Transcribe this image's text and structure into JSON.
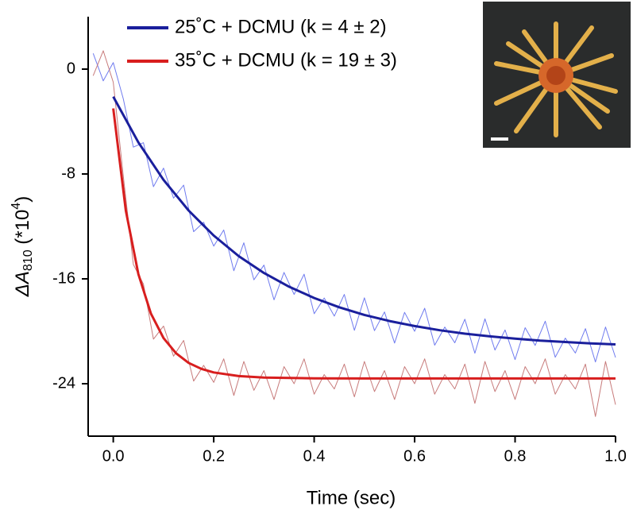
{
  "chart_data": {
    "type": "line",
    "x_label": "Time (sec)",
    "y_label_parts": [
      "ΔA",
      "810",
      " (*10",
      "4",
      ")"
    ],
    "xlim": [
      -0.05,
      1.0
    ],
    "ylim": [
      -28,
      4
    ],
    "xticks": [
      {
        "value": 0,
        "label": "0.0"
      },
      0.2,
      0.4,
      0.6,
      0.8,
      {
        "value": 1,
        "label": "1.0"
      }
    ],
    "yticks": [
      0,
      -8,
      -16,
      -24
    ],
    "grid": false,
    "legend": "top",
    "series": [
      {
        "color": "#6f7bef",
        "width": 1,
        "x": [
          -0.04,
          -0.02,
          0,
          0.02,
          0.04,
          0.06,
          0.08,
          0.1,
          0.12,
          0.14,
          0.16,
          0.18,
          0.2,
          0.22,
          0.24,
          0.26,
          0.28,
          0.3,
          0.32,
          0.34,
          0.36,
          0.38,
          0.4,
          0.42,
          0.44,
          0.46,
          0.48,
          0.5,
          0.52,
          0.54,
          0.56,
          0.58,
          0.6,
          0.62,
          0.64,
          0.66,
          0.68,
          0.7,
          0.72,
          0.74,
          0.76,
          0.78,
          0.8,
          0.82,
          0.84,
          0.86,
          0.88,
          0.9,
          0.92,
          0.94,
          0.96,
          0.98,
          1.0
        ],
        "values": [
          1.2,
          -0.9,
          0.5,
          -2.28,
          -5.95,
          -5.61,
          -8.97,
          -7.55,
          -9.84,
          -8.85,
          -12.4,
          -11.68,
          -13.5,
          -12.27,
          -15.38,
          -13.25,
          -16.07,
          -14.95,
          -17.6,
          -15.51,
          -17.19,
          -15.64,
          -18.66,
          -17.46,
          -18.84,
          -17.19,
          -19.93,
          -17.45,
          -19.95,
          -18.53,
          -20.9,
          -18.56,
          -20.0,
          -18.24,
          -21.06,
          -19.68,
          -20.88,
          -19.08,
          -21.67,
          -19.05,
          -21.43,
          -19.9,
          -22.16,
          -19.73,
          -21.08,
          -19.23,
          -21.98,
          -20.52,
          -21.66,
          -19.8,
          -22.34,
          -19.67,
          -22.0
        ]
      },
      {
        "color": "#c77a7a",
        "width": 1,
        "x": [
          -0.04,
          -0.02,
          0,
          0.02,
          0.04,
          0.06,
          0.08,
          0.1,
          0.12,
          0.14,
          0.16,
          0.18,
          0.2,
          0.22,
          0.24,
          0.26,
          0.28,
          0.3,
          0.32,
          0.34,
          0.36,
          0.38,
          0.4,
          0.42,
          0.44,
          0.46,
          0.48,
          0.5,
          0.52,
          0.54,
          0.56,
          0.58,
          0.6,
          0.62,
          0.64,
          0.66,
          0.68,
          0.7,
          0.72,
          0.74,
          0.76,
          0.78,
          0.8,
          0.82,
          0.84,
          0.86,
          0.88,
          0.9,
          0.92,
          0.94,
          0.96,
          0.98,
          1.0
        ],
        "values": [
          -0.5,
          1.4,
          -1.0,
          -8.2,
          -14.9,
          -16.4,
          -20.6,
          -19.6,
          -21.9,
          -20.7,
          -23.8,
          -22.6,
          -23.9,
          -22.1,
          -24.9,
          -22.3,
          -24.5,
          -23.0,
          -25.2,
          -22.7,
          -24.0,
          -22.1,
          -24.8,
          -23.3,
          -24.4,
          -22.5,
          -25.0,
          -22.3,
          -24.6,
          -23.0,
          -25.2,
          -22.7,
          -24.0,
          -22.1,
          -24.8,
          -23.3,
          -24.4,
          -22.5,
          -25.5,
          -22.3,
          -24.6,
          -23.0,
          -25.2,
          -22.7,
          -24.0,
          -22.1,
          -24.8,
          -23.3,
          -24.4,
          -22.5,
          -26.5,
          -22.3,
          -25.6
        ]
      },
      {
        "name": "25˚C + DCMU (k = 4 ± 2)",
        "color": "#1a1f9c",
        "width": 3,
        "x": [
          0,
          0.05,
          0.1,
          0.15,
          0.2,
          0.25,
          0.3,
          0.35,
          0.4,
          0.45,
          0.5,
          0.55,
          0.6,
          0.65,
          0.7,
          0.75,
          0.8,
          0.85,
          0.9,
          0.95,
          1.0
        ],
        "values": [
          -2.1,
          -5.59,
          -8.45,
          -10.79,
          -12.7,
          -14.27,
          -15.55,
          -16.6,
          -17.46,
          -18.17,
          -18.75,
          -19.22,
          -19.6,
          -19.92,
          -20.18,
          -20.39,
          -20.56,
          -20.71,
          -20.82,
          -20.92,
          -21.0
        ]
      },
      {
        "name": "35˚C + DCMU (k = 19 ± 3)",
        "color": "#d81e1e",
        "width": 3,
        "x": [
          0,
          0.025,
          0.05,
          0.075,
          0.1,
          0.125,
          0.15,
          0.175,
          0.2,
          0.25,
          0.3,
          0.4,
          0.5,
          0.6,
          0.7,
          0.8,
          0.9,
          1.0
        ],
        "values": [
          -3.0,
          -10.79,
          -15.63,
          -18.65,
          -20.52,
          -21.68,
          -22.41,
          -22.86,
          -23.14,
          -23.42,
          -23.53,
          -23.59,
          -23.6,
          -23.6,
          -23.6,
          -23.6,
          -23.6,
          -23.6
        ]
      }
    ]
  }
}
